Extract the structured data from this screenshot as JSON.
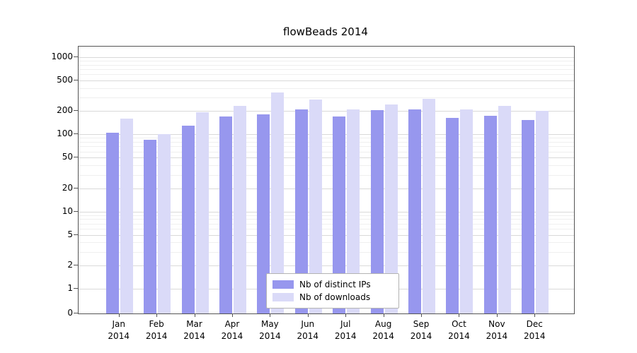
{
  "title": "flowBeads 2014",
  "chart_data": {
    "type": "bar",
    "title": "flowBeads 2014",
    "categories": [
      "Jan 2014",
      "Feb 2014",
      "Mar 2014",
      "Apr 2014",
      "May 2014",
      "Jun 2014",
      "Jul 2014",
      "Aug 2014",
      "Sep 2014",
      "Oct 2014",
      "Nov 2014",
      "Dec 2014"
    ],
    "series": [
      {
        "name": "Nb of distinct IPs",
        "color": "#9797ee",
        "values": [
          105,
          85,
          130,
          170,
          180,
          210,
          170,
          205,
          210,
          165,
          175,
          155
        ]
      },
      {
        "name": "Nb of downloads",
        "color": "#dadaf8",
        "values": [
          160,
          100,
          195,
          235,
          350,
          285,
          210,
          245,
          290,
          210,
          235,
          200
        ]
      }
    ],
    "xlabel": "",
    "ylabel": "",
    "yscale": "symlog",
    "yticks": [
      0,
      1,
      2,
      5,
      10,
      20,
      50,
      100,
      200,
      500,
      1000
    ],
    "yticks_minor": [
      3,
      4,
      6,
      7,
      8,
      9,
      30,
      40,
      60,
      70,
      80,
      90,
      300,
      400,
      600,
      700,
      800,
      900
    ],
    "ylim": [
      0,
      1400
    ],
    "grid": true,
    "legend_position": "lower-center-inside"
  },
  "legend": {
    "items": [
      {
        "label": "Nb of distinct IPs",
        "color": "#9797ee"
      },
      {
        "label": "Nb of downloads",
        "color": "#dadaf8"
      }
    ]
  }
}
